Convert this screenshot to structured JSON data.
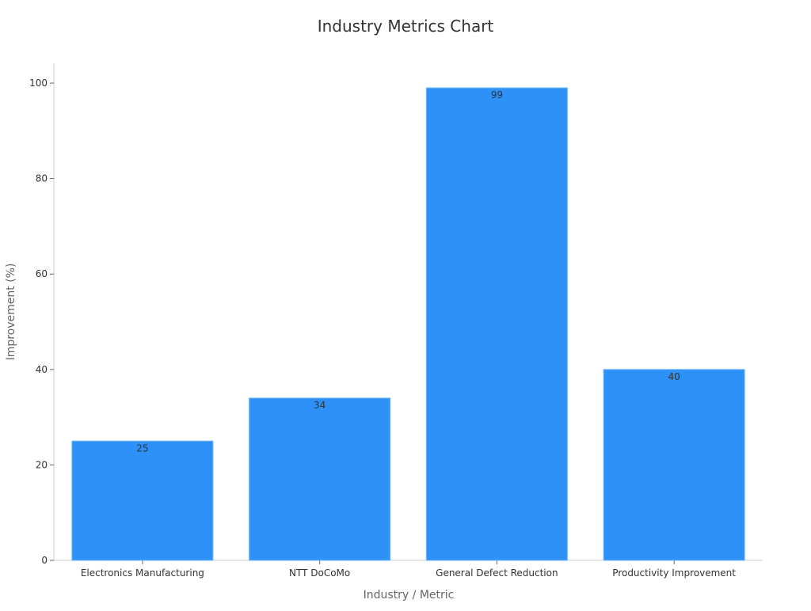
{
  "chart_data": {
    "type": "bar",
    "title": "Industry Metrics Chart",
    "xlabel": "Industry / Metric",
    "ylabel": "Improvement (%)",
    "categories": [
      "Electronics Manufacturing",
      "NTT DoCoMo",
      "General Defect Reduction",
      "Productivity Improvement"
    ],
    "values": [
      25,
      34,
      99,
      40
    ],
    "ylim": [
      0,
      100
    ],
    "yticks": [
      0,
      20,
      40,
      60,
      80,
      100
    ],
    "grid": false,
    "legend": "none",
    "bar_color": "#2e91f8",
    "data_labels": true
  }
}
